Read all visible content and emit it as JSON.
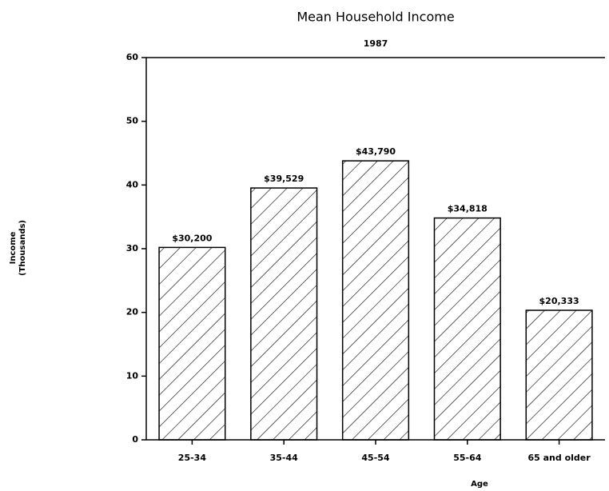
{
  "chart_data": {
    "type": "bar",
    "title": "Mean Household Income",
    "subtitle": "1987",
    "xlabel": "Age",
    "ylabel": [
      "Income",
      "(Thousands)"
    ],
    "categories": [
      "25-34",
      "35-44",
      "45-54",
      "55-64",
      "65 and older"
    ],
    "values": [
      30.2,
      39.529,
      43.79,
      34.818,
      20.333
    ],
    "value_labels": [
      "$30,200",
      "$39,529",
      "$43,790",
      "$34,818",
      "$20,333"
    ],
    "color": "#000000",
    "ylim": [
      0,
      60
    ],
    "yticks": [
      0,
      10,
      20,
      30,
      40,
      50,
      60
    ],
    "grid": false
  }
}
